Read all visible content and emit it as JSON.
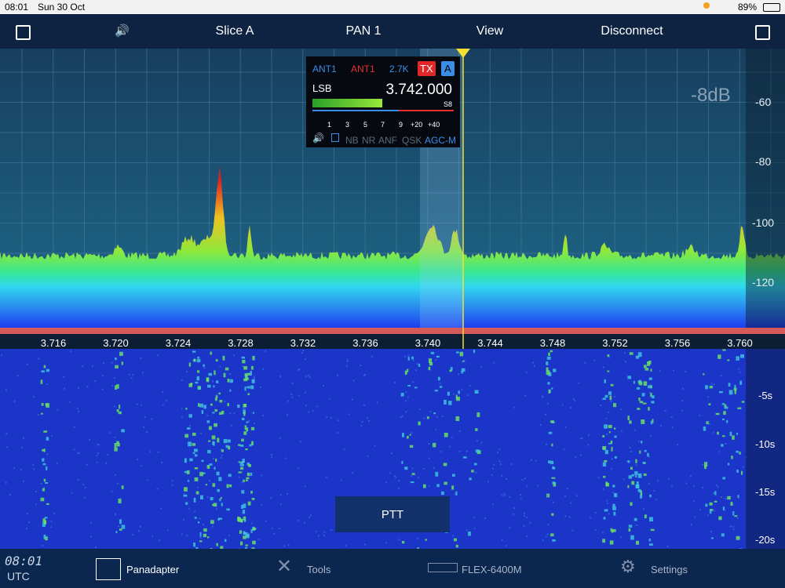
{
  "status_bar": {
    "time": "08:01",
    "date": "Sun 30 Oct",
    "battery": "89%"
  },
  "toolbar": {
    "items": [
      "Slice A",
      "PAN 1",
      "View",
      "Disconnect"
    ]
  },
  "panadapter": {
    "db_offset": "-8dB",
    "level_labels": [
      "-60",
      "-80",
      "-100",
      "-120"
    ],
    "frequency_labels": [
      "3.716",
      "3.720",
      "3.724",
      "3.728",
      "3.732",
      "3.736",
      "3.740",
      "3.744",
      "3.748",
      "3.752",
      "3.756",
      "3.760"
    ]
  },
  "slice": {
    "rx_antenna": "ANT1",
    "tx_antenna": "ANT1",
    "filter": "2.7K",
    "tx": "TX",
    "letter": "A",
    "mode": "LSB",
    "frequency": "3.742.000",
    "s_reading": "S8",
    "meter_scale": [
      "1",
      "3",
      "5",
      "7",
      "9",
      "+20",
      "+40"
    ],
    "features": [
      "NB",
      "NR",
      "ANF",
      "QSK",
      "AGC-M"
    ]
  },
  "waterfall": {
    "time_labels": [
      "-5s",
      "-10s",
      "-15s",
      "-20s"
    ],
    "ptt": "PTT"
  },
  "bottom_bar": {
    "clock": "08:01",
    "zone": "UTC",
    "tabs": [
      "Panadapter",
      "Tools",
      "FLEX-6400M",
      "Settings"
    ]
  }
}
